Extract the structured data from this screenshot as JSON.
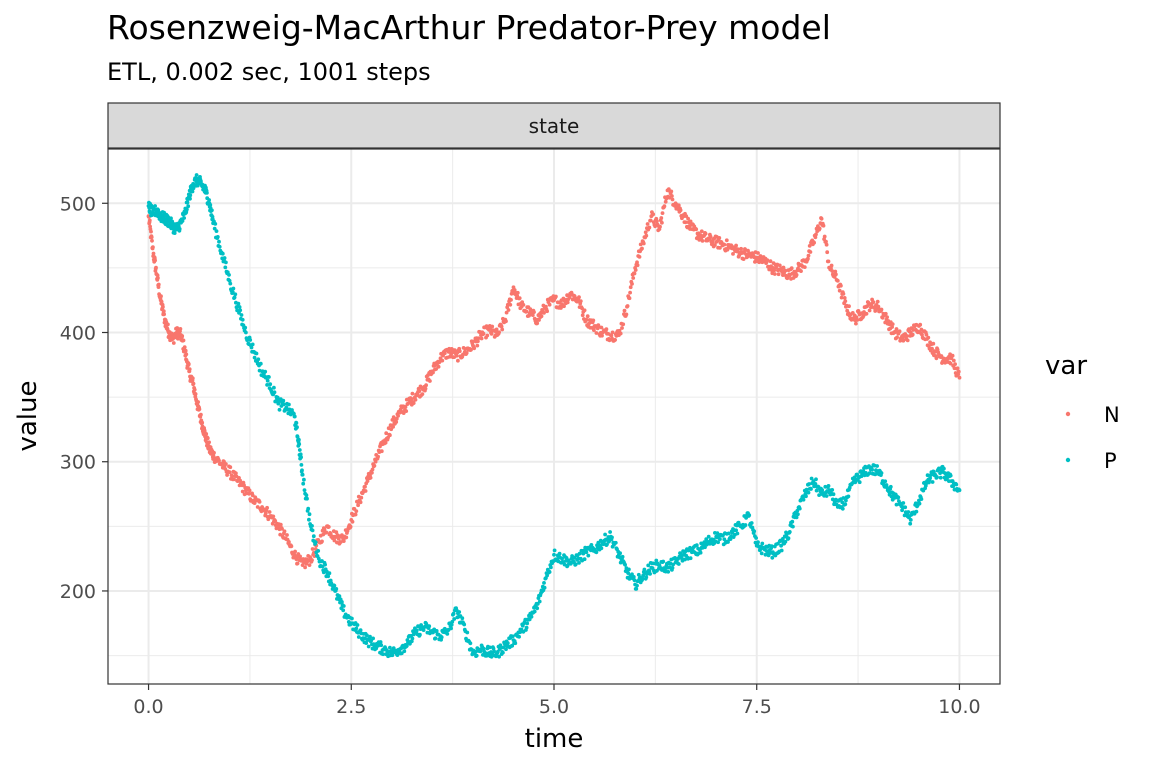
{
  "chart_data": {
    "type": "scatter",
    "title": "Rosenzweig-MacArthur Predator-Prey model",
    "subtitle": "ETL, 0.002 sec, 1001 steps",
    "facet_label": "state",
    "xlabel": "time",
    "ylabel": "value",
    "xlim": [
      -0.5,
      10.5
    ],
    "ylim": [
      128,
      542
    ],
    "x_ticks": [
      0.0,
      2.5,
      5.0,
      7.5,
      10.0
    ],
    "x_tick_labels": [
      "0.0",
      "2.5",
      "5.0",
      "7.5",
      "10.0"
    ],
    "y_ticks": [
      200,
      300,
      400,
      500
    ],
    "y_tick_labels": [
      "200",
      "300",
      "400",
      "500"
    ],
    "grid": true,
    "legend": {
      "title": "var",
      "position": "right"
    },
    "series": [
      {
        "name": "N",
        "color": "#F8766D",
        "x": [
          0.0,
          0.05,
          0.1,
          0.15,
          0.2,
          0.25,
          0.3,
          0.35,
          0.4,
          0.45,
          0.5,
          0.55,
          0.6,
          0.65,
          0.7,
          0.75,
          0.8,
          0.9,
          1.0,
          1.1,
          1.2,
          1.3,
          1.4,
          1.5,
          1.6,
          1.7,
          1.8,
          1.9,
          2.0,
          2.1,
          2.2,
          2.3,
          2.4,
          2.5,
          2.6,
          2.7,
          2.8,
          2.9,
          3.0,
          3.1,
          3.2,
          3.3,
          3.4,
          3.5,
          3.6,
          3.7,
          3.8,
          3.9,
          4.0,
          4.1,
          4.2,
          4.3,
          4.4,
          4.5,
          4.6,
          4.7,
          4.8,
          4.9,
          5.0,
          5.1,
          5.2,
          5.3,
          5.4,
          5.5,
          5.6,
          5.7,
          5.8,
          5.9,
          6.0,
          6.1,
          6.2,
          6.3,
          6.4,
          6.5,
          6.6,
          6.7,
          6.8,
          6.9,
          7.0,
          7.1,
          7.2,
          7.3,
          7.4,
          7.5,
          7.6,
          7.7,
          7.8,
          7.9,
          8.0,
          8.1,
          8.2,
          8.3,
          8.4,
          8.5,
          8.6,
          8.7,
          8.8,
          8.9,
          9.0,
          9.1,
          9.2,
          9.3,
          9.4,
          9.5,
          9.6,
          9.7,
          9.8,
          9.9,
          10.0
        ],
        "values": [
          490,
          465,
          445,
          425,
          410,
          400,
          395,
          400,
          398,
          385,
          370,
          360,
          345,
          332,
          320,
          310,
          305,
          298,
          292,
          285,
          278,
          270,
          265,
          258,
          250,
          240,
          228,
          220,
          225,
          238,
          250,
          242,
          240,
          255,
          270,
          285,
          300,
          315,
          328,
          338,
          345,
          352,
          358,
          370,
          380,
          385,
          382,
          385,
          390,
          398,
          402,
          398,
          410,
          435,
          420,
          415,
          410,
          420,
          425,
          422,
          430,
          425,
          410,
          405,
          400,
          398,
          398,
          420,
          450,
          470,
          490,
          480,
          510,
          500,
          490,
          480,
          475,
          472,
          470,
          468,
          465,
          462,
          460,
          458,
          455,
          450,
          448,
          445,
          448,
          455,
          470,
          488,
          450,
          440,
          420,
          410,
          415,
          422,
          420,
          410,
          400,
          395,
          400,
          405,
          395,
          385,
          380,
          380,
          365
        ]
      },
      {
        "name": "P",
        "color": "#00BFC4",
        "x": [
          0.0,
          0.05,
          0.1,
          0.15,
          0.2,
          0.25,
          0.3,
          0.35,
          0.4,
          0.45,
          0.5,
          0.55,
          0.6,
          0.65,
          0.7,
          0.75,
          0.8,
          0.9,
          1.0,
          1.1,
          1.2,
          1.3,
          1.4,
          1.5,
          1.6,
          1.7,
          1.8,
          1.85,
          1.9,
          2.0,
          2.1,
          2.2,
          2.3,
          2.4,
          2.5,
          2.6,
          2.7,
          2.8,
          2.9,
          3.0,
          3.1,
          3.2,
          3.3,
          3.4,
          3.5,
          3.6,
          3.7,
          3.8,
          3.9,
          4.0,
          4.1,
          4.2,
          4.3,
          4.4,
          4.5,
          4.6,
          4.7,
          4.8,
          4.9,
          5.0,
          5.1,
          5.2,
          5.3,
          5.4,
          5.5,
          5.6,
          5.7,
          5.8,
          5.9,
          6.0,
          6.1,
          6.2,
          6.3,
          6.4,
          6.5,
          6.6,
          6.7,
          6.8,
          6.9,
          7.0,
          7.1,
          7.2,
          7.3,
          7.4,
          7.5,
          7.6,
          7.7,
          7.8,
          7.9,
          8.0,
          8.1,
          8.2,
          8.3,
          8.4,
          8.5,
          8.6,
          8.7,
          8.8,
          8.9,
          9.0,
          9.1,
          9.2,
          9.3,
          9.4,
          9.5,
          9.6,
          9.7,
          9.8,
          9.9,
          10.0
        ],
        "values": [
          498,
          492,
          495,
          490,
          488,
          486,
          482,
          480,
          485,
          492,
          505,
          515,
          518,
          515,
          510,
          500,
          485,
          462,
          440,
          420,
          400,
          385,
          370,
          360,
          345,
          342,
          335,
          315,
          290,
          250,
          225,
          215,
          200,
          185,
          175,
          168,
          162,
          158,
          155,
          152,
          155,
          160,
          168,
          172,
          168,
          165,
          170,
          185,
          170,
          152,
          155,
          152,
          152,
          158,
          162,
          170,
          178,
          190,
          210,
          228,
          225,
          222,
          225,
          230,
          232,
          238,
          242,
          228,
          215,
          205,
          212,
          218,
          220,
          218,
          222,
          228,
          230,
          232,
          238,
          242,
          240,
          245,
          250,
          258,
          235,
          232,
          230,
          235,
          245,
          262,
          275,
          285,
          275,
          278,
          265,
          270,
          285,
          290,
          295,
          292,
          282,
          272,
          265,
          255,
          270,
          285,
          290,
          292,
          285,
          278
        ]
      }
    ]
  }
}
